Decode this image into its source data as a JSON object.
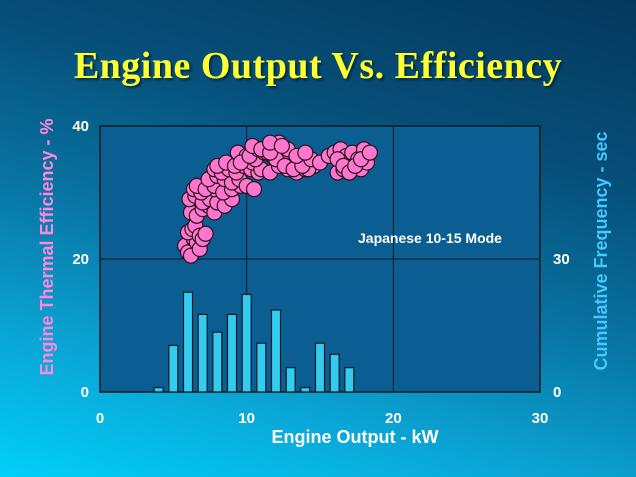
{
  "chart_data": {
    "type": "scatter",
    "title": "Engine Output  Vs. Efficiency",
    "xlabel": "Engine Output - kW",
    "ylabel": "Engine Thermal Efficiency - %",
    "y2label": "Cumulative Frequency - sec",
    "annotation": "Japanese 10-15 Mode",
    "xlim": [
      0,
      30
    ],
    "ylim": [
      0,
      40
    ],
    "y2lim": [
      0,
      60
    ],
    "xticks": [
      "0",
      "10",
      "20",
      "30"
    ],
    "yticks": [
      "0",
      "20",
      "40"
    ],
    "y2ticks": [
      "0",
      "30"
    ],
    "grid": true,
    "colors": {
      "marker": "#ff77cc",
      "bar": "#33ccee",
      "plot_bg": "#0b5e92",
      "title": "#ffff33",
      "ylabel": "#ff88dd",
      "y2label": "#44c8ff"
    },
    "series": [
      {
        "type": "scatter",
        "axis": "left",
        "x": [
          5.8,
          6.0,
          6.2,
          6.4,
          6.6,
          6.8,
          6.0,
          6.3,
          6.5,
          6.8,
          7.0,
          7.2,
          6.2,
          6.6,
          7.0,
          7.4,
          7.8,
          6.1,
          6.5,
          7.0,
          7.5,
          8.0,
          8.5,
          9.0,
          6.4,
          6.9,
          7.4,
          7.8,
          8.2,
          8.6,
          9.0,
          6.6,
          7.2,
          7.8,
          8.4,
          9.0,
          9.6,
          7.4,
          8.0,
          8.5,
          9.0,
          9.5,
          10.0,
          10.5,
          7.8,
          8.3,
          8.8,
          9.3,
          9.8,
          10.3,
          10.8,
          8.0,
          8.6,
          9.2,
          9.8,
          10.4,
          11.0,
          11.6,
          12.2,
          12.8,
          13.4,
          14.0,
          14.6,
          9.4,
          10.0,
          10.6,
          11.2,
          11.8,
          12.4,
          13.0,
          13.6,
          14.2,
          9.6,
          10.2,
          10.8,
          11.4,
          12.0,
          12.6,
          13.2,
          13.8,
          14.4,
          15.0,
          15.6,
          10.4,
          11.0,
          11.6,
          12.2,
          12.8,
          13.4,
          14.0,
          11.6,
          12.4,
          16.2,
          16.6,
          17.0,
          17.4,
          17.8,
          18.2,
          16.0,
          16.4,
          16.8,
          17.2,
          17.6,
          18.0,
          16.2,
          16.6,
          17.0,
          17.4,
          17.8,
          18.4
        ],
        "y": [
          22.0,
          21.0,
          20.5,
          23.0,
          22.5,
          21.5,
          24.0,
          24.5,
          25.0,
          23.5,
          23.0,
          23.8,
          27.0,
          26.5,
          27.5,
          28.0,
          27.0,
          29.0,
          29.5,
          28.5,
          29.0,
          28.5,
          28.0,
          29.0,
          30.5,
          30.0,
          31.0,
          30.5,
          31.0,
          30.5,
          31.0,
          31.0,
          30.5,
          31.0,
          30.0,
          30.5,
          31.0,
          32.0,
          32.5,
          32.0,
          31.5,
          32.0,
          31.0,
          30.5,
          33.5,
          33.0,
          33.5,
          33.0,
          34.0,
          33.5,
          33.0,
          34.0,
          34.5,
          34.0,
          35.0,
          34.5,
          33.5,
          33.0,
          34.0,
          33.5,
          33.0,
          33.5,
          34.0,
          36.0,
          35.5,
          35.0,
          36.0,
          35.5,
          35.0,
          34.0,
          35.0,
          33.5,
          34.5,
          35.5,
          36.5,
          36.0,
          35.0,
          34.0,
          33.5,
          34.0,
          35.0,
          34.5,
          35.5,
          37.0,
          36.5,
          36.0,
          37.5,
          36.5,
          35.5,
          36.0,
          37.5,
          37.0,
          33.0,
          33.5,
          33.0,
          34.0,
          33.5,
          34.5,
          36.0,
          36.5,
          35.5,
          36.0,
          35.0,
          36.5,
          35.0,
          34.0,
          33.0,
          34.0,
          35.0,
          36.0
        ]
      },
      {
        "type": "bar",
        "axis": "right",
        "x": [
          4,
          5,
          6,
          7,
          8,
          9,
          10,
          11,
          12,
          13,
          14,
          15,
          16,
          17,
          18,
          19
        ],
        "values": [
          1,
          10.5,
          22.5,
          17.5,
          13.5,
          17.5,
          22,
          11,
          18.5,
          5.5,
          1,
          11,
          8.5,
          5.5,
          0,
          0
        ]
      }
    ]
  }
}
